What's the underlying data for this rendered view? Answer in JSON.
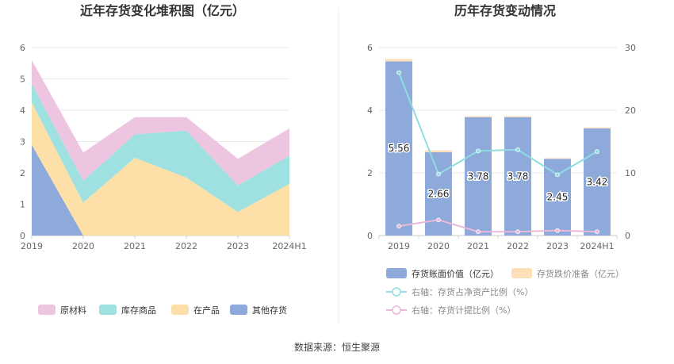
{
  "chart_data": [
    {
      "type": "area",
      "stacked": true,
      "title": "近年存货变化堆积图（亿元）",
      "categories": [
        "2019",
        "2020",
        "2021",
        "2022",
        "2023",
        "2024H1"
      ],
      "ylim": [
        0,
        6
      ],
      "yticks": [
        "0",
        "1",
        "2",
        "3",
        "4",
        "5",
        "6"
      ],
      "grid": true,
      "legend_position": "bottom",
      "series": [
        {
          "name": "其他存货",
          "color": "#8eaadb",
          "values": [
            2.9,
            0,
            0,
            0,
            0,
            0
          ]
        },
        {
          "name": "在产品",
          "color": "#fde0a8",
          "values": [
            1.35,
            1.05,
            2.48,
            1.85,
            0.75,
            1.65
          ]
        },
        {
          "name": "库存商品",
          "color": "#9fe0e0",
          "values": [
            0.6,
            0.7,
            0.75,
            1.5,
            0.85,
            0.9
          ]
        },
        {
          "name": "原材料",
          "color": "#eec5e0",
          "values": [
            0.75,
            0.9,
            0.55,
            0.43,
            0.85,
            0.87
          ]
        }
      ],
      "legend_order": [
        "原材料",
        "库存商品",
        "在产品",
        "其他存货"
      ]
    },
    {
      "type": "bar",
      "title": "历年存货变动情况",
      "categories": [
        "2019",
        "2020",
        "2021",
        "2022",
        "2023",
        "2024H1"
      ],
      "ylim_left": [
        0,
        6
      ],
      "yticks_left": [
        "0",
        "2",
        "4",
        "6"
      ],
      "ylim_right": [
        0,
        30
      ],
      "yticks_right": [
        "0",
        "10",
        "20",
        "30"
      ],
      "legend_position": "bottom",
      "bar_series": [
        {
          "name": "存货账面价值（亿元）",
          "color": "#8eaadb",
          "values": [
            5.56,
            2.66,
            3.78,
            3.78,
            2.45,
            3.42
          ],
          "labels": [
            "5.56",
            "2.66",
            "3.78",
            "3.78",
            "2.45",
            "3.42"
          ]
        },
        {
          "name": "存货跌价准备（亿元）",
          "color": "#fde0b8",
          "values": [
            0.08,
            0.06,
            0.03,
            0.03,
            0.02,
            0.03
          ]
        }
      ],
      "line_series": [
        {
          "name": "右轴：存货占净资产比例（%）",
          "color": "#8fdde0",
          "values": [
            26.0,
            9.8,
            13.5,
            13.7,
            9.7,
            13.4
          ]
        },
        {
          "name": "右轴：存货计提比例（%）",
          "color": "#eab8d8",
          "values": [
            1.5,
            2.5,
            0.6,
            0.6,
            0.8,
            0.6
          ]
        }
      ]
    }
  ],
  "source": "数据来源：恒生聚源"
}
